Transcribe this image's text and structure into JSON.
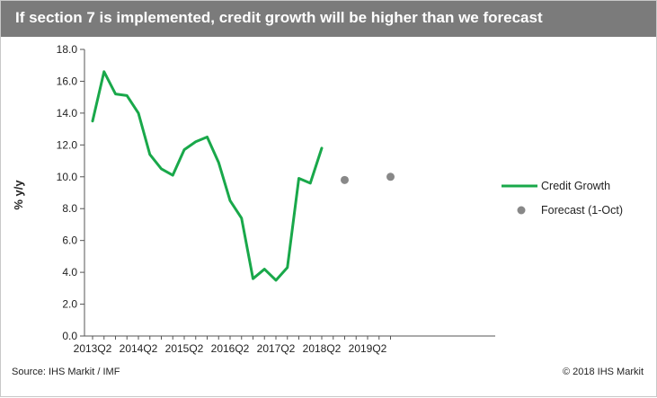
{
  "header": {
    "title": "If section 7 is implemented, credit growth will be higher than we forecast"
  },
  "footer": {
    "source": "Source: IHS Markit / IMF",
    "copyright": "© 2018 IHS Markit"
  },
  "colors": {
    "header_bg": "#7b7b7b",
    "credit_line": "#19a84a",
    "forecast_dot": "#888888",
    "axis": "#555555",
    "text": "#222222"
  },
  "chart_data": {
    "type": "line",
    "title": "If section 7 is implemented, credit growth will be higher than we forecast",
    "xlabel": "",
    "ylabel": "% y/y",
    "ylim": [
      0,
      18
    ],
    "yticks": [
      "0.0",
      "2.0",
      "4.0",
      "6.0",
      "8.0",
      "10.0",
      "12.0",
      "14.0",
      "16.0",
      "18.0"
    ],
    "x_tick_labels": [
      "2013Q2",
      "2014Q2",
      "2015Q2",
      "2016Q2",
      "2017Q2",
      "2018Q2",
      "2019Q2"
    ],
    "quarters": [
      "2013Q2",
      "2013Q3",
      "2013Q4",
      "2014Q1",
      "2014Q2",
      "2014Q3",
      "2014Q4",
      "2015Q1",
      "2015Q2",
      "2015Q3",
      "2015Q4",
      "2016Q1",
      "2016Q2",
      "2016Q3",
      "2016Q4",
      "2017Q1",
      "2017Q2",
      "2017Q3",
      "2017Q4",
      "2018Q1",
      "2018Q2",
      "2018Q3",
      "2018Q4",
      "2019Q1",
      "2019Q2",
      "2019Q3",
      "2019Q4"
    ],
    "legend_position": "right",
    "series": [
      {
        "name": "Credit Growth",
        "kind": "line",
        "x": [
          "2013Q2",
          "2013Q3",
          "2013Q4",
          "2014Q1",
          "2014Q2",
          "2014Q3",
          "2014Q4",
          "2015Q1",
          "2015Q2",
          "2015Q3",
          "2015Q4",
          "2016Q1",
          "2016Q2",
          "2016Q3",
          "2016Q4",
          "2017Q1",
          "2017Q2",
          "2017Q3",
          "2017Q4",
          "2018Q1",
          "2018Q2"
        ],
        "values": [
          13.5,
          16.6,
          15.2,
          15.1,
          14.0,
          11.4,
          10.5,
          10.1,
          11.7,
          12.2,
          12.5,
          10.9,
          8.5,
          7.4,
          3.6,
          4.2,
          3.5,
          4.3,
          9.9,
          9.6,
          11.8
        ]
      },
      {
        "name": "Forecast (1-Oct)",
        "kind": "scatter",
        "x": [
          "2018Q4",
          "2019Q4"
        ],
        "values": [
          9.8,
          10.0
        ]
      }
    ]
  }
}
